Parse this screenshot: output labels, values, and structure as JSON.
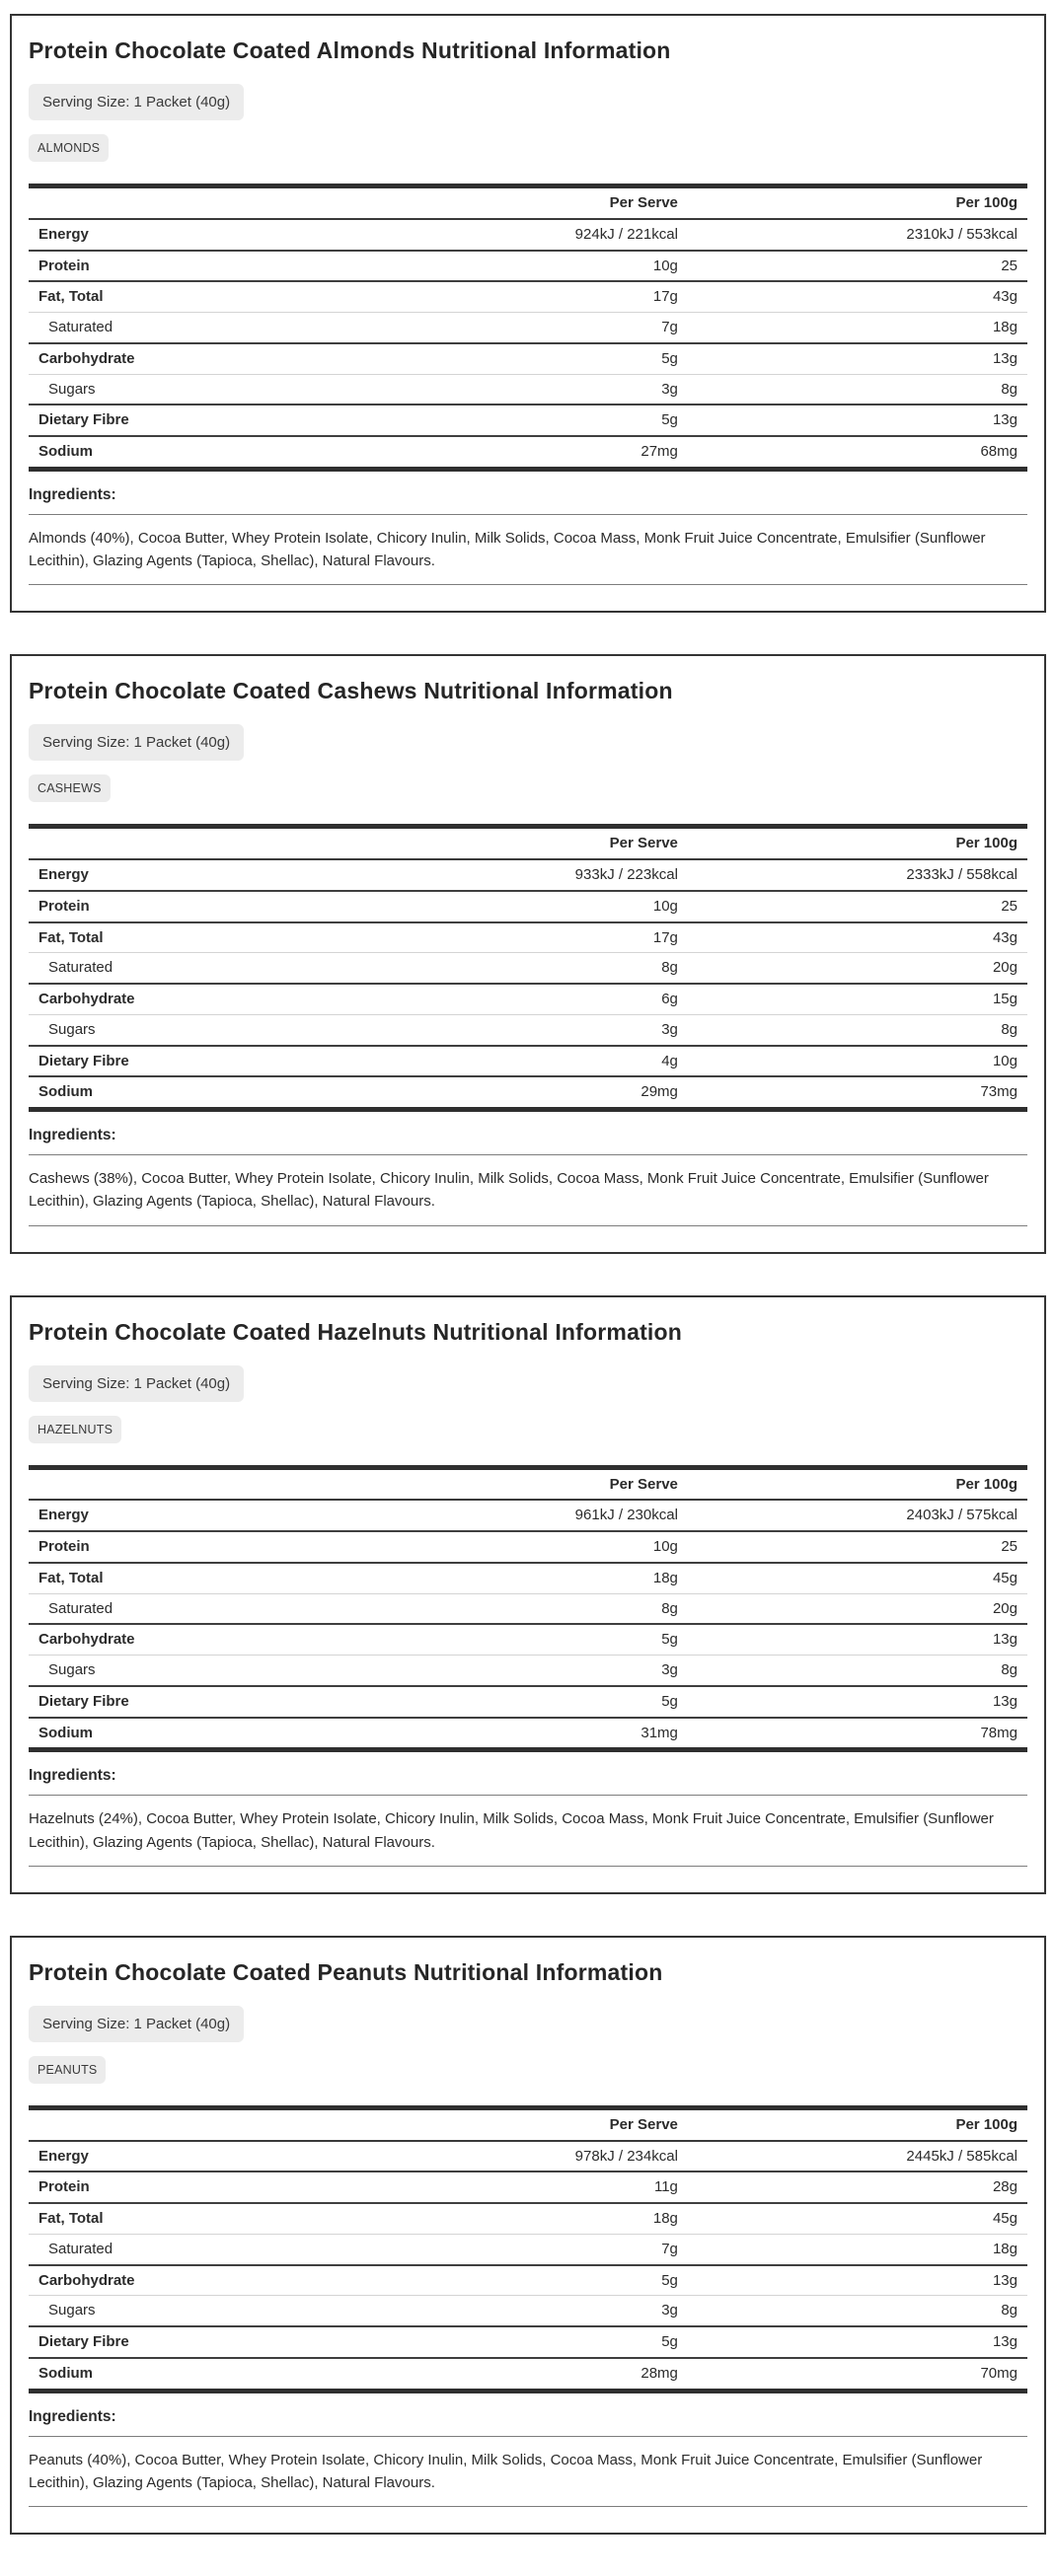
{
  "table_headers": {
    "label": "",
    "per_serve": "Per Serve",
    "per_100g": "Per 100g"
  },
  "ingredients_label": "Ingredients:",
  "colors": {
    "text": "#2b2b2b",
    "panel_border": "#343434",
    "table_heavy_border": "#2f2f2f",
    "major_row_border": "#3f3f3f",
    "sub_row_border": "#d4d4d4",
    "badge_background": "#ececec",
    "rule": "#7d7d7d"
  },
  "products": [
    {
      "title": "Protein Chocolate Coated Almonds Nutritional Information",
      "serving_size": "Serving Size: 1 Packet (40g)",
      "tag": "ALMONDS",
      "rows": [
        {
          "label": "Energy",
          "per_serve": "924kJ / 221kcal",
          "per_100g": "2310kJ / 553kcal",
          "sub": false
        },
        {
          "label": "Protein",
          "per_serve": "10g",
          "per_100g": "25",
          "sub": false
        },
        {
          "label": "Fat, Total",
          "per_serve": "17g",
          "per_100g": "43g",
          "sub": false
        },
        {
          "label": "Saturated",
          "per_serve": "7g",
          "per_100g": "18g",
          "sub": true
        },
        {
          "label": "Carbohydrate",
          "per_serve": "5g",
          "per_100g": "13g",
          "sub": false
        },
        {
          "label": "Sugars",
          "per_serve": "3g",
          "per_100g": "8g",
          "sub": true
        },
        {
          "label": "Dietary Fibre",
          "per_serve": "5g",
          "per_100g": "13g",
          "sub": false
        },
        {
          "label": "Sodium",
          "per_serve": "27mg",
          "per_100g": "68mg",
          "sub": false
        }
      ],
      "ingredients": "Almonds (40%), Cocoa Butter, Whey Protein Isolate, Chicory Inulin, Milk Solids, Cocoa Mass, Monk Fruit Juice Concentrate, Emulsifier (Sunflower Lecithin), Glazing Agents (Tapioca, Shellac), Natural Flavours."
    },
    {
      "title": "Protein Chocolate Coated Cashews Nutritional Information",
      "serving_size": "Serving Size: 1 Packet (40g)",
      "tag": "CASHEWS",
      "rows": [
        {
          "label": "Energy",
          "per_serve": "933kJ / 223kcal",
          "per_100g": "2333kJ / 558kcal",
          "sub": false
        },
        {
          "label": "Protein",
          "per_serve": "10g",
          "per_100g": "25",
          "sub": false
        },
        {
          "label": "Fat, Total",
          "per_serve": "17g",
          "per_100g": "43g",
          "sub": false
        },
        {
          "label": "Saturated",
          "per_serve": "8g",
          "per_100g": "20g",
          "sub": true
        },
        {
          "label": "Carbohydrate",
          "per_serve": "6g",
          "per_100g": "15g",
          "sub": false
        },
        {
          "label": "Sugars",
          "per_serve": "3g",
          "per_100g": "8g",
          "sub": true
        },
        {
          "label": "Dietary Fibre",
          "per_serve": "4g",
          "per_100g": "10g",
          "sub": false
        },
        {
          "label": "Sodium",
          "per_serve": "29mg",
          "per_100g": "73mg",
          "sub": false
        }
      ],
      "ingredients": "Cashews (38%), Cocoa Butter, Whey Protein Isolate, Chicory Inulin, Milk Solids, Cocoa Mass, Monk Fruit Juice Concentrate, Emulsifier (Sunflower Lecithin), Glazing Agents (Tapioca, Shellac), Natural Flavours."
    },
    {
      "title": "Protein Chocolate Coated Hazelnuts Nutritional Information",
      "serving_size": "Serving Size: 1 Packet (40g)",
      "tag": "HAZELNUTS",
      "rows": [
        {
          "label": "Energy",
          "per_serve": "961kJ / 230kcal",
          "per_100g": "2403kJ / 575kcal",
          "sub": false
        },
        {
          "label": "Protein",
          "per_serve": "10g",
          "per_100g": "25",
          "sub": false
        },
        {
          "label": "Fat, Total",
          "per_serve": "18g",
          "per_100g": "45g",
          "sub": false
        },
        {
          "label": "Saturated",
          "per_serve": "8g",
          "per_100g": "20g",
          "sub": true
        },
        {
          "label": "Carbohydrate",
          "per_serve": "5g",
          "per_100g": "13g",
          "sub": false
        },
        {
          "label": "Sugars",
          "per_serve": "3g",
          "per_100g": "8g",
          "sub": true
        },
        {
          "label": "Dietary Fibre",
          "per_serve": "5g",
          "per_100g": "13g",
          "sub": false
        },
        {
          "label": "Sodium",
          "per_serve": "31mg",
          "per_100g": "78mg",
          "sub": false
        }
      ],
      "ingredients": "Hazelnuts (24%), Cocoa Butter, Whey Protein Isolate, Chicory Inulin, Milk Solids, Cocoa Mass, Monk Fruit Juice Concentrate, Emulsifier (Sunflower Lecithin), Glazing Agents (Tapioca, Shellac), Natural Flavours."
    },
    {
      "title": "Protein Chocolate Coated Peanuts Nutritional Information",
      "serving_size": "Serving Size: 1 Packet (40g)",
      "tag": "PEANUTS",
      "rows": [
        {
          "label": "Energy",
          "per_serve": "978kJ / 234kcal",
          "per_100g": "2445kJ / 585kcal",
          "sub": false
        },
        {
          "label": "Protein",
          "per_serve": "11g",
          "per_100g": "28g",
          "sub": false
        },
        {
          "label": "Fat, Total",
          "per_serve": "18g",
          "per_100g": "45g",
          "sub": false
        },
        {
          "label": "Saturated",
          "per_serve": "7g",
          "per_100g": "18g",
          "sub": true
        },
        {
          "label": "Carbohydrate",
          "per_serve": "5g",
          "per_100g": "13g",
          "sub": false
        },
        {
          "label": "Sugars",
          "per_serve": "3g",
          "per_100g": "8g",
          "sub": true
        },
        {
          "label": "Dietary Fibre",
          "per_serve": "5g",
          "per_100g": "13g",
          "sub": false
        },
        {
          "label": "Sodium",
          "per_serve": "28mg",
          "per_100g": "70mg",
          "sub": false
        }
      ],
      "ingredients": "Peanuts (40%), Cocoa Butter, Whey Protein Isolate, Chicory Inulin, Milk Solids, Cocoa Mass, Monk Fruit Juice Concentrate, Emulsifier (Sunflower Lecithin), Glazing Agents (Tapioca, Shellac), Natural Flavours."
    }
  ]
}
